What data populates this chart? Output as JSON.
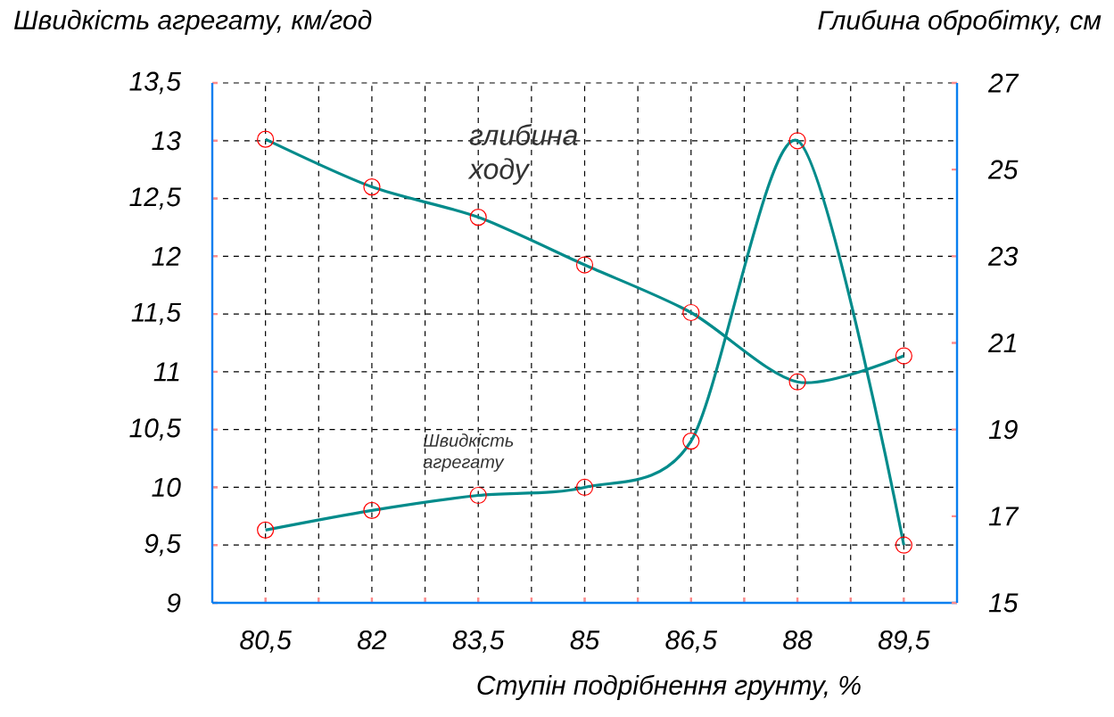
{
  "chart_data": {
    "type": "line",
    "xlabel": "Ступін подрібнення грунту, %",
    "ylabel": "Швидкість агрегату, км/год",
    "y2label": "Глибина обробітку, см",
    "x": [
      80.5,
      82,
      83.5,
      85,
      86.5,
      88,
      89.5
    ],
    "series": [
      {
        "name": "Швидкість агрегату",
        "color": "#008b8b",
        "values": [
          9.63,
          9.8,
          9.93,
          10.0,
          10.4,
          13.0,
          9.5
        ]
      },
      {
        "name": "глибина ходу",
        "color": "#008b8b",
        "axis": "y2",
        "values": [
          25.7,
          24.6,
          23.9,
          22.8,
          21.7,
          20.1,
          20.7
        ]
      }
    ],
    "xlim": [
      79.75,
      90.25
    ],
    "xticks": [
      {
        "value": 80.5,
        "label": "80,5"
      },
      {
        "value": 81.25,
        "label": null
      },
      82,
      {
        "value": 82.75,
        "label": null
      },
      {
        "value": 83.5,
        "label": "83,5"
      },
      {
        "value": 84.25,
        "label": null
      },
      85,
      {
        "value": 85.75,
        "label": null
      },
      {
        "value": 86.5,
        "label": "86,5"
      },
      {
        "value": 87.25,
        "label": null
      },
      88,
      {
        "value": 88.75,
        "label": null
      },
      {
        "value": 89.5,
        "label": "89,5"
      }
    ],
    "ylim": [
      9,
      13.5
    ],
    "yticks": [
      9,
      {
        "value": 9.5,
        "label": "9,5"
      },
      10,
      {
        "value": 10.5,
        "label": "10,5"
      },
      11,
      {
        "value": 11.5,
        "label": "11,5"
      },
      12,
      {
        "value": 12.5,
        "label": "12,5"
      },
      13,
      {
        "value": 13.5,
        "label": "13,5"
      }
    ],
    "y2lim": [
      15,
      27
    ],
    "y2ticks": [
      15,
      17,
      19,
      21,
      23,
      25,
      27
    ],
    "grid": true,
    "marker": "circle",
    "line_style": "solid"
  }
}
